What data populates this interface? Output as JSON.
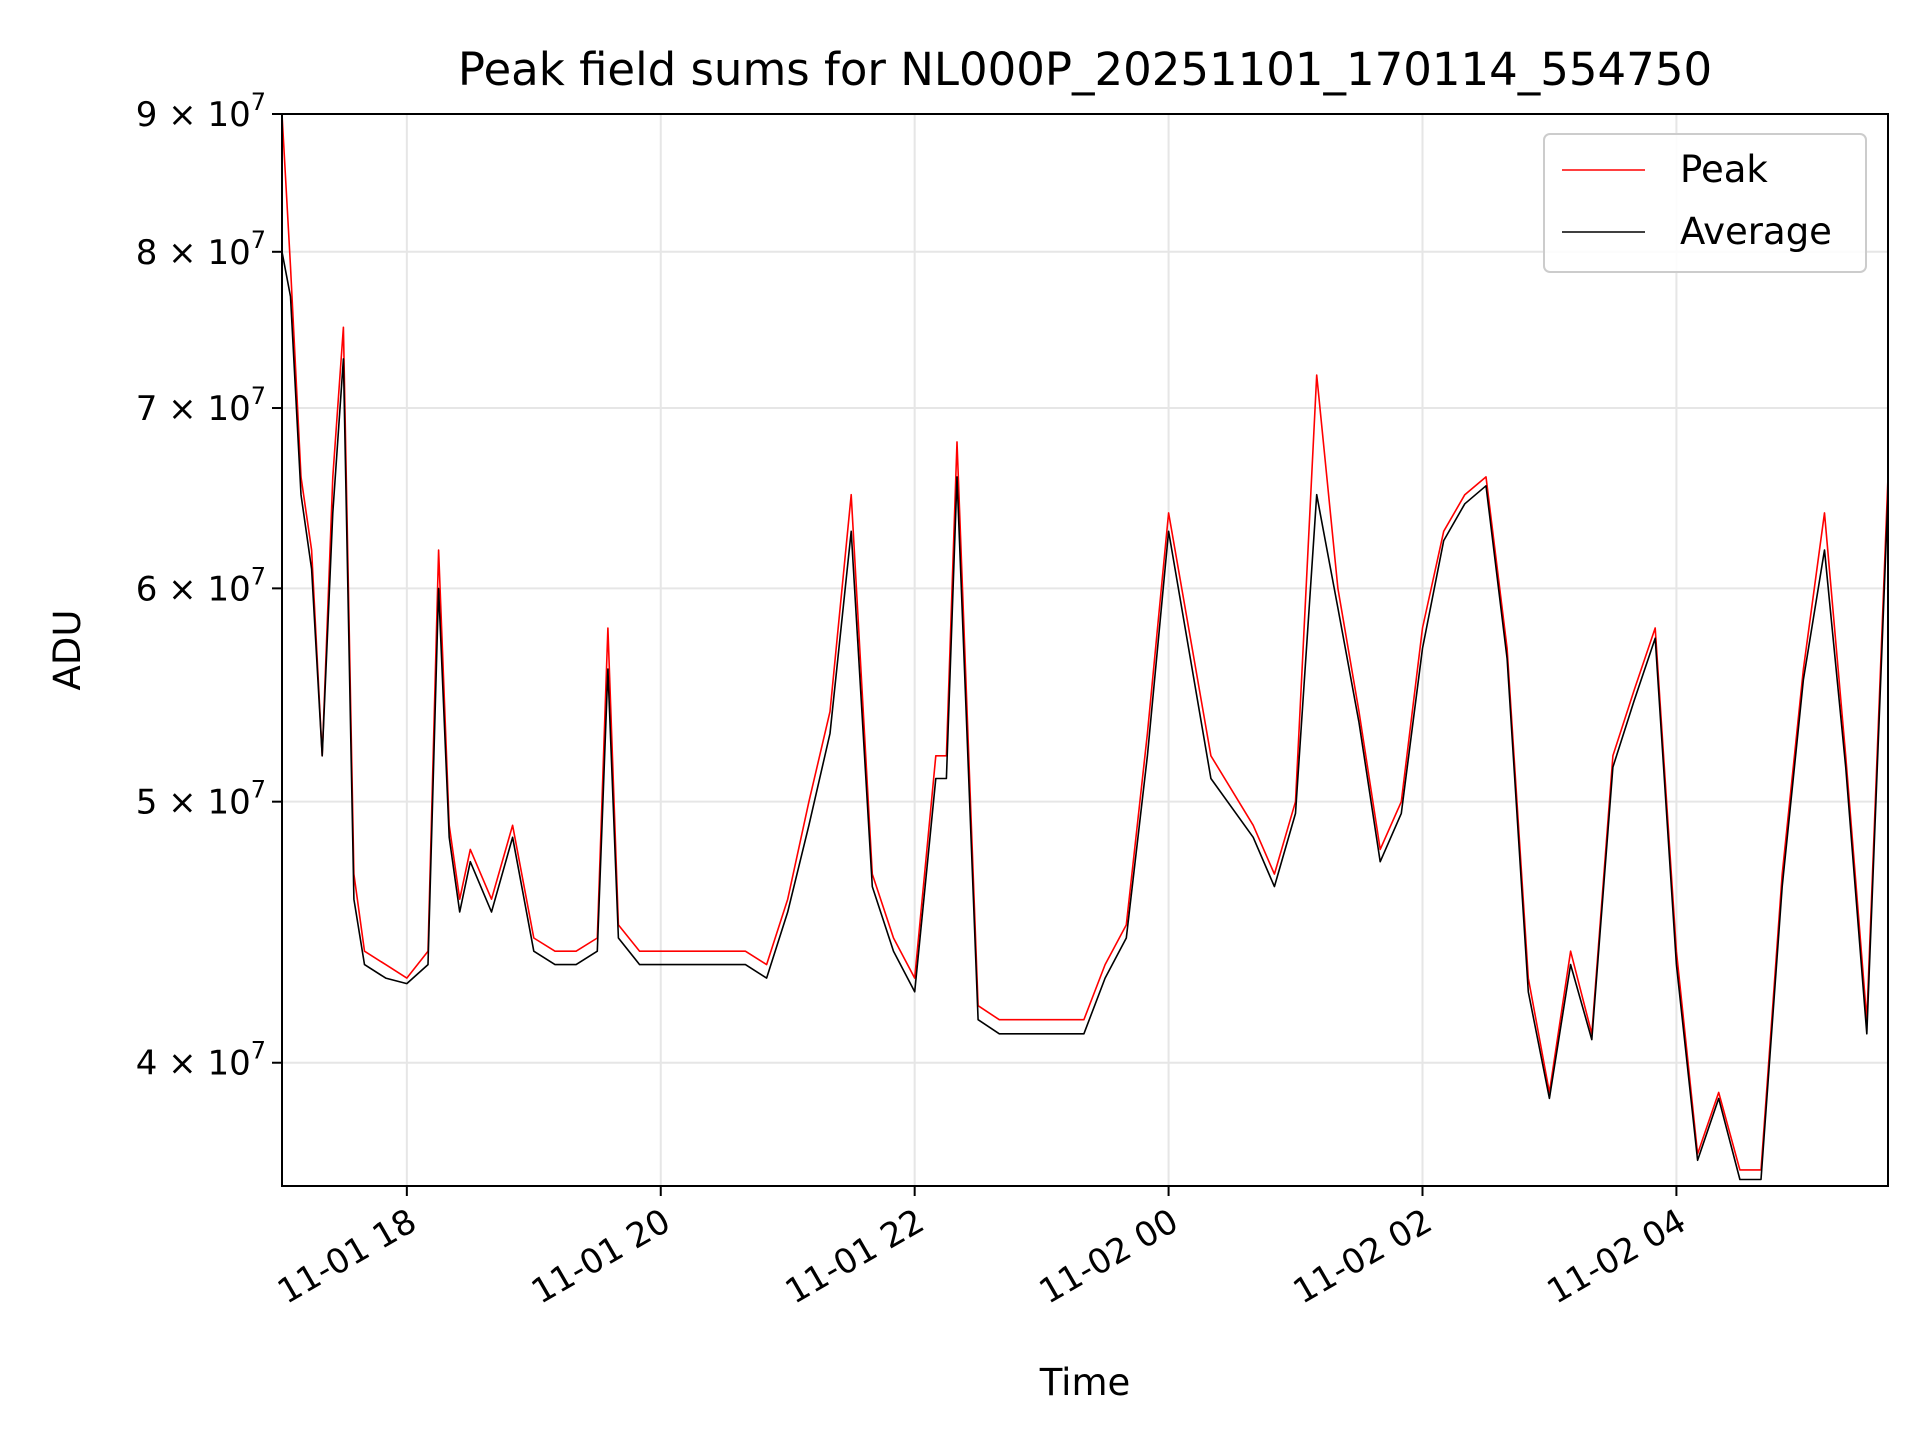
{
  "chart_data": {
    "type": "line",
    "title": "Peak field sums for NL000P_20251101_170114_554750",
    "xlabel": "Time",
    "ylabel": "ADU",
    "x_range": [
      "11-01 17:01",
      "11-02 05:40"
    ],
    "ylim": [
      36000000,
      90000000
    ],
    "yscale": "log",
    "grid": true,
    "legend_position": "top-right",
    "x_ticks": [
      "11-01 18",
      "11-01 20",
      "11-01 22",
      "11-02 00",
      "11-02 02",
      "11-02 04"
    ],
    "y_ticks": [
      {
        "value": 40000000,
        "mantissa": "4",
        "exponent": "7"
      },
      {
        "value": 50000000,
        "mantissa": "5",
        "exponent": "7"
      },
      {
        "value": 60000000,
        "mantissa": "6",
        "exponent": "7"
      },
      {
        "value": 70000000,
        "mantissa": "7",
        "exponent": "7"
      },
      {
        "value": 80000000,
        "mantissa": "8",
        "exponent": "7"
      },
      {
        "value": 90000000,
        "mantissa": "9",
        "exponent": "7"
      }
    ],
    "times_of_x": "11-01 17:00 to 11-02 05:40",
    "x": [
      "17:01",
      "17:05",
      "17:10",
      "17:15",
      "17:20",
      "17:25",
      "17:30",
      "17:35",
      "17:40",
      "17:50",
      "18:00",
      "18:10",
      "18:15",
      "18:20",
      "18:25",
      "18:30",
      "18:40",
      "18:50",
      "19:00",
      "19:10",
      "19:20",
      "19:30",
      "19:35",
      "19:40",
      "19:50",
      "20:00",
      "20:20",
      "20:40",
      "20:50",
      "21:00",
      "21:10",
      "21:20",
      "21:30",
      "21:40",
      "21:50",
      "22:00",
      "22:10",
      "22:15",
      "22:20",
      "22:30",
      "22:40",
      "23:00",
      "23:20",
      "23:30",
      "23:40",
      "23:50",
      "00:00",
      "00:20",
      "00:40",
      "00:50",
      "01:00",
      "01:10",
      "01:20",
      "01:30",
      "01:40",
      "01:50",
      "02:00",
      "02:10",
      "02:20",
      "02:30",
      "02:40",
      "02:50",
      "03:00",
      "03:10",
      "03:20",
      "03:30",
      "03:40",
      "03:50",
      "04:00",
      "04:10",
      "04:20",
      "04:30",
      "04:40",
      "04:50",
      "05:00",
      "05:10",
      "05:20",
      "05:30",
      "05:40"
    ],
    "series": [
      {
        "name": "Peak",
        "color": "#ff0000",
        "values": [
          90000000,
          79000000,
          66000000,
          62000000,
          52000000,
          66000000,
          75000000,
          47000000,
          44000000,
          43500000,
          43000000,
          44000000,
          62000000,
          49000000,
          46000000,
          48000000,
          46000000,
          49000000,
          44500000,
          44000000,
          44000000,
          44500000,
          58000000,
          45000000,
          44000000,
          44000000,
          44000000,
          44000000,
          43500000,
          46000000,
          50000000,
          54000000,
          65000000,
          47000000,
          44500000,
          43000000,
          52000000,
          52000000,
          68000000,
          42000000,
          41500000,
          41500000,
          41500000,
          43500000,
          45000000,
          53000000,
          64000000,
          52000000,
          49000000,
          47000000,
          50000000,
          72000000,
          60000000,
          54000000,
          48000000,
          50000000,
          58000000,
          63000000,
          65000000,
          66000000,
          57000000,
          43000000,
          39000000,
          44000000,
          41000000,
          52000000,
          55000000,
          58000000,
          44000000,
          37000000,
          39000000,
          36500000,
          36500000,
          47000000,
          56000000,
          64000000,
          52000000,
          41500000,
          66000000
        ]
      },
      {
        "name": "Average",
        "color": "#000000",
        "values": [
          80000000,
          77000000,
          65000000,
          61000000,
          52000000,
          64000000,
          73000000,
          46000000,
          43500000,
          43000000,
          42800000,
          43500000,
          60000000,
          48500000,
          45500000,
          47500000,
          45500000,
          48500000,
          44000000,
          43500000,
          43500000,
          44000000,
          56000000,
          44500000,
          43500000,
          43500000,
          43500000,
          43500000,
          43000000,
          45500000,
          49000000,
          53000000,
          63000000,
          46500000,
          44000000,
          42500000,
          51000000,
          51000000,
          66000000,
          41500000,
          41000000,
          41000000,
          41000000,
          43000000,
          44500000,
          52000000,
          63000000,
          51000000,
          48500000,
          46500000,
          49500000,
          65000000,
          59000000,
          53500000,
          47500000,
          49500000,
          57000000,
          62500000,
          64500000,
          65500000,
          56500000,
          42500000,
          38800000,
          43500000,
          40800000,
          51500000,
          54500000,
          57500000,
          43500000,
          36800000,
          38800000,
          36200000,
          36200000,
          46500000,
          55500000,
          62000000,
          51500000,
          41000000,
          65000000
        ]
      }
    ]
  }
}
